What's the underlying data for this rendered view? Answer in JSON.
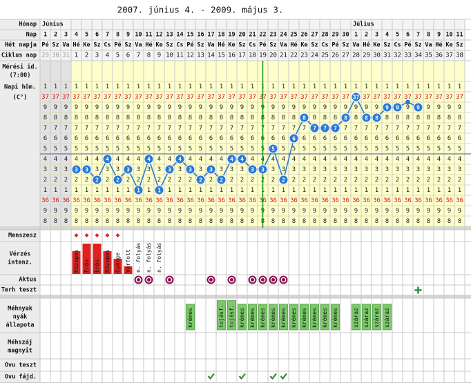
{
  "title": "2007. június 4. - 2009. május 3.",
  "row_labels": [
    [
      "Hónap"
    ],
    [
      "Nap"
    ],
    [
      "Hét napja"
    ],
    [
      "Ciklus nap"
    ],
    [
      "Mérési id.",
      "(7:00)"
    ],
    [
      "Napi hőm.",
      "(C°)"
    ],
    [
      "Menszesz"
    ],
    [
      "Vérzés",
      "intenz."
    ],
    [
      "Aktus"
    ],
    [
      "Terh teszt"
    ],
    [
      "Méhnyak",
      "nyák",
      "állapota"
    ],
    [
      "Méhszáj",
      "magnyit"
    ],
    [
      "Ovu teszt"
    ],
    [
      "Ovu fájd."
    ]
  ],
  "months": [
    "Június",
    null,
    null,
    null,
    null,
    null,
    null,
    null,
    null,
    null,
    null,
    null,
    null,
    null,
    null,
    null,
    null,
    null,
    null,
    null,
    null,
    null,
    null,
    null,
    null,
    null,
    null,
    null,
    null,
    null,
    "Július",
    null,
    null,
    null,
    null,
    null,
    null,
    null,
    null,
    null,
    null
  ],
  "days": [
    1,
    2,
    3,
    4,
    5,
    6,
    7,
    8,
    9,
    10,
    11,
    12,
    13,
    14,
    15,
    16,
    17,
    18,
    19,
    20,
    21,
    22,
    23,
    24,
    25,
    26,
    27,
    28,
    29,
    30,
    1,
    2,
    3,
    4,
    5,
    6,
    7,
    8,
    9,
    10,
    11
  ],
  "weekdays": [
    "Pé",
    "Sz",
    "Va",
    "Hé",
    "Ke",
    "Sz",
    "Cs",
    "Pé",
    "Sz",
    "Va",
    "Hé",
    "Ke",
    "Sz",
    "Cs",
    "Pé",
    "Sz",
    "Va",
    "Hé",
    "Ke",
    "Sz",
    "Cs",
    "Pé",
    "Sz",
    "Va",
    "Hé",
    "Ke",
    "Sz",
    "Cs",
    "Pé",
    "Sz",
    "Va",
    "Hé",
    "Ke",
    "Sz",
    "Cs",
    "Pé",
    "Sz",
    "Va",
    "Hé",
    "Ke",
    "Sz"
  ],
  "cycle_days": [
    29,
    30,
    31,
    1,
    2,
    3,
    4,
    5,
    6,
    7,
    8,
    9,
    10,
    11,
    12,
    13,
    14,
    15,
    16,
    17,
    18,
    19,
    20,
    21,
    22,
    23,
    24,
    25,
    26,
    27,
    28,
    29,
    30,
    31,
    32,
    33,
    34,
    35,
    36,
    37,
    38
  ],
  "temp_scale": [
    {
      "value": 37.1,
      "label": "1"
    },
    {
      "value": 37.0,
      "label": "37"
    },
    {
      "value": 36.9,
      "label": "9"
    },
    {
      "value": 36.8,
      "label": "8"
    },
    {
      "value": 36.7,
      "label": "7"
    },
    {
      "value": 36.6,
      "label": "6"
    },
    {
      "value": 36.5,
      "label": "5"
    },
    {
      "value": 36.4,
      "label": "4"
    },
    {
      "value": 36.3,
      "label": "3"
    },
    {
      "value": 36.2,
      "label": "2"
    },
    {
      "value": 36.1,
      "label": "1"
    },
    {
      "value": 36.0,
      "label": "36"
    },
    {
      "value": 35.9,
      "label": "9"
    },
    {
      "value": 35.8,
      "label": "8"
    }
  ],
  "temperatures": [
    null,
    null,
    null,
    36.3,
    36.3,
    36.2,
    36.4,
    36.2,
    36.3,
    36.1,
    36.4,
    36.1,
    36.3,
    36.4,
    36.3,
    36.2,
    36.3,
    36.2,
    36.4,
    36.4,
    36.3,
    36.3,
    36.5,
    36.2,
    36.6,
    36.8,
    36.7,
    36.7,
    36.7,
    36.8,
    37.0,
    36.8,
    36.8,
    36.9,
    36.9,
    36.95,
    36.9,
    null,
    null,
    null,
    null
  ],
  "coverline": 36.45,
  "ovulation_col": 21,
  "menses": [
    null,
    null,
    null,
    true,
    true,
    true,
    true,
    true,
    null,
    null,
    null,
    null,
    null,
    null,
    null,
    null,
    null,
    null,
    null,
    null,
    null,
    null,
    null,
    null,
    null,
    null,
    null,
    null,
    null,
    null,
    null,
    null,
    null,
    null,
    null,
    null,
    null,
    null,
    null,
    null,
    null
  ],
  "bleeding_labels": [
    null,
    null,
    null,
    "Közepes",
    "Erős",
    "Erős",
    "Közepes",
    "Gyenge",
    "Vérfolt",
    "n. folyás",
    "n. folyás",
    "n. folyás",
    null,
    null,
    null,
    null,
    null,
    null,
    null,
    null,
    null,
    null,
    null,
    null,
    null,
    null,
    null,
    null,
    null,
    null,
    null,
    null,
    null,
    null,
    null,
    null,
    null,
    null,
    null,
    null,
    null
  ],
  "bleeding_levels": [
    null,
    null,
    null,
    3,
    4,
    4,
    3,
    2,
    1,
    null,
    null,
    null,
    null,
    null,
    null,
    null,
    null,
    null,
    null,
    null,
    null,
    null,
    null,
    null,
    null,
    null,
    null,
    null,
    null,
    null,
    null,
    null,
    null,
    null,
    null,
    null,
    null,
    null,
    null,
    null,
    null
  ],
  "intercourse": [
    null,
    null,
    null,
    null,
    null,
    null,
    null,
    null,
    null,
    true,
    true,
    null,
    true,
    null,
    null,
    null,
    true,
    null,
    true,
    null,
    true,
    true,
    true,
    true,
    null,
    null,
    null,
    null,
    null,
    null,
    null,
    null,
    null,
    null,
    null,
    null,
    null,
    null,
    null,
    null,
    null
  ],
  "pregnancy_test": [
    null,
    null,
    null,
    null,
    null,
    null,
    null,
    null,
    null,
    null,
    null,
    null,
    null,
    null,
    null,
    null,
    null,
    null,
    null,
    null,
    null,
    null,
    null,
    null,
    null,
    null,
    null,
    null,
    null,
    null,
    null,
    null,
    null,
    null,
    null,
    null,
    true,
    null,
    null,
    null,
    null
  ],
  "mucus": [
    null,
    null,
    null,
    null,
    null,
    null,
    null,
    null,
    null,
    null,
    null,
    null,
    null,
    null,
    "krémes",
    null,
    null,
    "tojásf.",
    "tojásf.",
    "krémes",
    "krémes",
    "krémes",
    "krémes",
    "krémes",
    "krémes",
    "krémes",
    "krémes",
    "krémes",
    "krémes",
    null,
    "száraz",
    "száraz",
    "száraz",
    "száraz",
    null,
    null,
    null,
    null,
    null,
    null,
    null
  ],
  "ovulation_pain": [
    null,
    null,
    null,
    null,
    null,
    null,
    null,
    null,
    null,
    null,
    null,
    null,
    null,
    null,
    null,
    null,
    true,
    null,
    null,
    true,
    null,
    null,
    true,
    true,
    null,
    null,
    null,
    null,
    null,
    null,
    null,
    null,
    null,
    null,
    null,
    null,
    null,
    null,
    null,
    null,
    null
  ]
}
